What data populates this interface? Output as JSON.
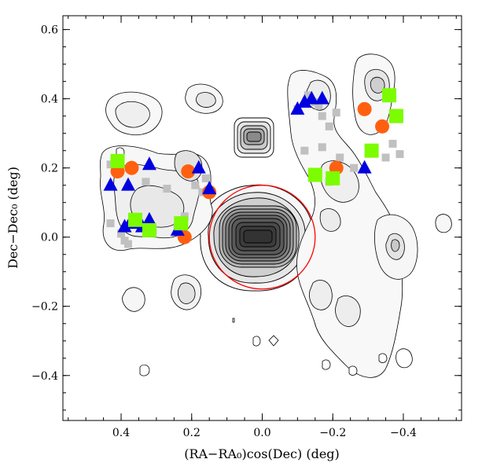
{
  "chart_data": {
    "type": "scatter",
    "xlabel": "(RA−RA₀)cos(Dec) (deg)",
    "ylabel": "Dec−Dec₀ (deg)",
    "xlim": [
      0.565,
      -0.565
    ],
    "ylim": [
      -0.53,
      0.64
    ],
    "x_ticks": [
      0.4,
      0.2,
      0.0,
      -0.2,
      -0.4
    ],
    "x_tick_labels": [
      "0.4",
      "0.2",
      "0.0",
      "−0.2",
      "−0.4"
    ],
    "y_ticks": [
      -0.4,
      -0.2,
      0.0,
      0.2,
      0.4,
      0.6
    ],
    "y_tick_labels": [
      "−0.4",
      "−0.2",
      "0.0",
      "0.2",
      "0.4",
      "0.6"
    ],
    "grid": false,
    "circle": {
      "x": 0.0,
      "y": 0.0,
      "radius": 0.15,
      "color": "#ff0000"
    },
    "series": [
      {
        "marker": "square-small",
        "color": "#c0c0c0",
        "points": [
          [
            0.43,
            0.21
          ],
          [
            0.33,
            0.16
          ],
          [
            0.27,
            0.14
          ],
          [
            0.19,
            0.15
          ],
          [
            0.16,
            0.17
          ],
          [
            0.17,
            0.13
          ],
          [
            0.43,
            0.04
          ],
          [
            0.4,
            0.01
          ],
          [
            0.39,
            -0.01
          ],
          [
            0.38,
            -0.02
          ],
          [
            0.31,
            0.02
          ],
          [
            0.24,
            0.03
          ],
          [
            0.22,
            0.06
          ],
          [
            -0.13,
            0.41
          ],
          [
            -0.15,
            0.39
          ],
          [
            -0.17,
            0.35
          ],
          [
            -0.21,
            0.36
          ],
          [
            -0.19,
            0.32
          ],
          [
            -0.16,
            0.38
          ],
          [
            -0.1,
            0.37
          ],
          [
            -0.17,
            0.26
          ],
          [
            -0.12,
            0.25
          ],
          [
            -0.22,
            0.23
          ],
          [
            -0.37,
            0.27
          ],
          [
            -0.39,
            0.24
          ],
          [
            -0.35,
            0.23
          ],
          [
            -0.26,
            0.2
          ],
          [
            -0.19,
            0.16
          ]
        ]
      },
      {
        "marker": "circle",
        "color": "#ff6010",
        "points": [
          [
            0.41,
            0.19
          ],
          [
            0.37,
            0.2
          ],
          [
            0.21,
            0.19
          ],
          [
            0.15,
            0.13
          ],
          [
            0.22,
            0.0
          ],
          [
            -0.21,
            0.2
          ],
          [
            -0.29,
            0.37
          ],
          [
            -0.34,
            0.32
          ]
        ]
      },
      {
        "marker": "triangle",
        "color": "#0000e0",
        "points": [
          [
            0.43,
            0.15
          ],
          [
            0.38,
            0.15
          ],
          [
            0.37,
            0.05
          ],
          [
            0.39,
            0.03
          ],
          [
            0.36,
            0.04
          ],
          [
            0.34,
            0.03
          ],
          [
            0.32,
            0.05
          ],
          [
            0.32,
            0.21
          ],
          [
            0.18,
            0.2
          ],
          [
            0.15,
            0.14
          ],
          [
            0.24,
            0.02
          ],
          [
            -0.1,
            0.37
          ],
          [
            -0.12,
            0.39
          ],
          [
            -0.14,
            0.4
          ],
          [
            -0.17,
            0.4
          ],
          [
            -0.29,
            0.2
          ]
        ]
      },
      {
        "marker": "square",
        "color": "#7cfc00",
        "points": [
          [
            0.41,
            0.22
          ],
          [
            0.36,
            0.05
          ],
          [
            0.32,
            0.02
          ],
          [
            0.23,
            0.04
          ],
          [
            -0.15,
            0.18
          ],
          [
            -0.2,
            0.17
          ],
          [
            -0.31,
            0.25
          ],
          [
            -0.36,
            0.41
          ],
          [
            -0.38,
            0.35
          ]
        ]
      }
    ]
  }
}
